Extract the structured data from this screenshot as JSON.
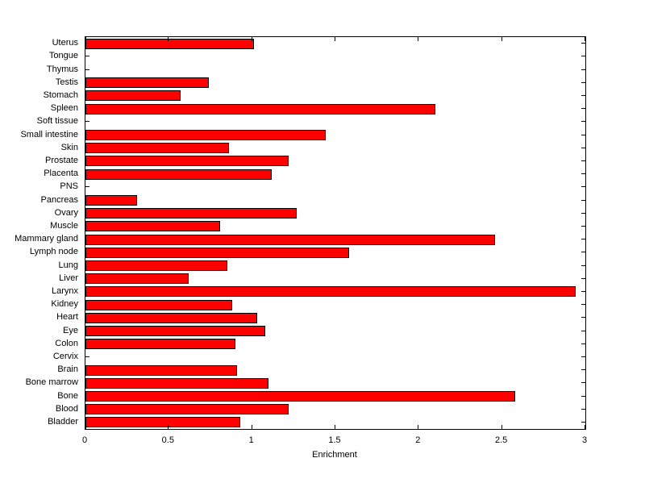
{
  "chart_data": {
    "type": "bar",
    "orientation": "horizontal",
    "title": "",
    "xlabel": "Enrichment",
    "ylabel": "",
    "xlim": [
      0,
      3
    ],
    "xticks": [
      0,
      0.5,
      1,
      1.5,
      2,
      2.5,
      3
    ],
    "xtick_labels": [
      "0",
      "0.5",
      "1",
      "1.5",
      "2",
      "2.5",
      "3"
    ],
    "grid": false,
    "legend": null,
    "bar_color": "#ff0000",
    "bar_edge_color": "#000000",
    "categories": [
      "Uterus",
      "Tongue",
      "Thymus",
      "Testis",
      "Stomach",
      "Spleen",
      "Soft tissue",
      "Small intestine",
      "Skin",
      "Prostate",
      "Placenta",
      "PNS",
      "Pancreas",
      "Ovary",
      "Muscle",
      "Mammary gland",
      "Lymph node",
      "Lung",
      "Liver",
      "Larynx",
      "Kidney",
      "Heart",
      "Eye",
      "Colon",
      "Cervix",
      "Brain",
      "Bone marrow",
      "Bone",
      "Blood",
      "Bladder"
    ],
    "values": [
      1.01,
      0,
      0,
      0.74,
      0.57,
      2.1,
      0,
      1.44,
      0.86,
      1.22,
      1.12,
      0,
      0.31,
      1.27,
      0.81,
      2.46,
      1.58,
      0.85,
      0.62,
      2.94,
      0.88,
      1.03,
      1.08,
      0.9,
      0,
      0.91,
      1.1,
      2.58,
      1.22,
      0.93
    ]
  }
}
